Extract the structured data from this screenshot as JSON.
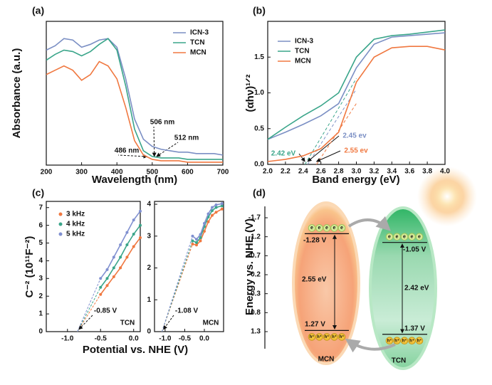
{
  "chart_data": [
    {
      "type": "line",
      "panel_label": "(a)",
      "xlabel": "Wavelength (nm)",
      "ylabel": "Absorbance (a.u.)",
      "xlim": [
        200,
        700
      ],
      "xticks": [
        200,
        300,
        400,
        500,
        600,
        700
      ],
      "ylim": [
        0,
        1
      ],
      "legend": "upper right",
      "x": [
        200,
        225,
        250,
        275,
        300,
        325,
        350,
        375,
        400,
        425,
        450,
        475,
        500,
        525,
        550,
        575,
        600,
        625,
        650,
        675,
        700
      ],
      "series": [
        {
          "name": "ICN-3",
          "color": "#7b8fc4",
          "values": [
            0.8,
            0.83,
            0.88,
            0.87,
            0.82,
            0.84,
            0.87,
            0.88,
            0.82,
            0.6,
            0.32,
            0.18,
            0.13,
            0.11,
            0.1,
            0.09,
            0.09,
            0.08,
            0.08,
            0.08,
            0.07
          ]
        },
        {
          "name": "TCN",
          "color": "#3aa58a",
          "values": [
            0.73,
            0.77,
            0.8,
            0.79,
            0.76,
            0.79,
            0.84,
            0.88,
            0.8,
            0.55,
            0.25,
            0.1,
            0.06,
            0.05,
            0.05,
            0.05,
            0.04,
            0.04,
            0.04,
            0.04,
            0.04
          ]
        },
        {
          "name": "MCN",
          "color": "#f07840",
          "values": [
            0.63,
            0.66,
            0.69,
            0.66,
            0.59,
            0.63,
            0.72,
            0.69,
            0.6,
            0.4,
            0.17,
            0.07,
            0.04,
            0.03,
            0.03,
            0.03,
            0.02,
            0.02,
            0.02,
            0.02,
            0.02
          ]
        }
      ],
      "annotations": [
        {
          "text": "506 nm",
          "value": 506
        },
        {
          "text": "512 nm",
          "value": 512
        },
        {
          "text": "486 nm",
          "value": 486
        }
      ]
    },
    {
      "type": "line",
      "panel_label": "(b)",
      "xlabel": "Band energy (eV)",
      "ylabel": "(αhν)¹ᐟ²",
      "xlim": [
        2.0,
        4.0
      ],
      "xticks": [
        {
          "value": 2,
          "label": "2.0"
        },
        2.2,
        2.4,
        2.6,
        2.8,
        {
          "value": 3,
          "label": "3.0"
        },
        3.2,
        3.4,
        3.6,
        3.8,
        {
          "value": 4,
          "label": "4.0"
        }
      ],
      "ylim": [
        0,
        2.0
      ],
      "yticks": [
        {
          "value": 0,
          "label": "0.0"
        },
        0.5,
        {
          "value": 1,
          "label": "1.0"
        },
        1.5
      ],
      "legend": "upper left",
      "x": [
        2.0,
        2.2,
        2.4,
        2.6,
        2.8,
        3.0,
        3.2,
        3.4,
        3.6,
        3.8,
        4.0
      ],
      "series": [
        {
          "name": "ICN-3",
          "color": "#7b8fc4",
          "values": [
            0.35,
            0.45,
            0.56,
            0.68,
            0.85,
            1.35,
            1.68,
            1.78,
            1.8,
            1.82,
            1.84
          ]
        },
        {
          "name": "TCN",
          "color": "#3aa58a",
          "values": [
            0.35,
            0.52,
            0.68,
            0.82,
            1.0,
            1.5,
            1.75,
            1.8,
            1.82,
            1.85,
            1.88
          ]
        },
        {
          "name": "MCN",
          "color": "#f07840",
          "values": [
            0.04,
            0.07,
            0.12,
            0.22,
            0.45,
            1.15,
            1.5,
            1.63,
            1.65,
            1.65,
            1.6
          ]
        }
      ],
      "annotations": [
        {
          "text": "2.45 ev",
          "value": 2.45,
          "color": "#7b8fc4"
        },
        {
          "text": "2.42 eV",
          "value": 2.42,
          "color": "#3aa58a"
        },
        {
          "text": "2.55 ev",
          "value": 2.55,
          "color": "#f07840"
        }
      ]
    },
    {
      "type": "line",
      "panel_label": "(c)",
      "name": "TCN",
      "xlabel": "Potential vs. NHE (V)",
      "ylabel": "C⁻² (10¹¹F⁻²)",
      "markers": true,
      "xlim": [
        -1.32,
        0.1
      ],
      "xticks": [
        {
          "value": -1,
          "label": "-1.0"
        },
        -0.5,
        {
          "value": 0,
          "label": "0.0"
        }
      ],
      "ylim": [
        0,
        7.35
      ],
      "yticks": [
        0,
        1,
        2,
        3,
        4,
        5,
        6,
        7
      ],
      "legend": "upper left",
      "x": [
        -0.5,
        -0.4,
        -0.3,
        -0.2,
        -0.1,
        0.0,
        0.1
      ],
      "series": [
        {
          "name": "3 kHz",
          "color": "#f07840",
          "values": [
            2.1,
            2.6,
            3.1,
            3.6,
            4.2,
            4.8,
            5.3
          ]
        },
        {
          "name": "4 kHz",
          "color": "#3aa58a",
          "values": [
            2.5,
            3.0,
            3.6,
            4.2,
            4.9,
            5.5,
            6.0
          ]
        },
        {
          "name": "5 kHz",
          "color": "#8090d0",
          "values": [
            3.0,
            3.5,
            4.2,
            4.9,
            5.6,
            6.3,
            6.8
          ]
        }
      ],
      "annotations": [
        {
          "text": "-0.85 V",
          "value": -0.85
        }
      ]
    },
    {
      "type": "line",
      "name": "MCN",
      "markers": true,
      "xlim": [
        -1.27,
        0.49
      ],
      "xticks": [
        {
          "value": -1,
          "label": "-1.0"
        },
        -0.5,
        {
          "value": 0,
          "label": "0.0"
        }
      ],
      "ylim": [
        0,
        4.09
      ],
      "yticks": [
        0,
        1,
        2,
        3,
        4
      ],
      "x": [
        -0.3,
        -0.2,
        -0.1,
        0.0,
        0.1,
        0.2,
        0.3,
        0.45
      ],
      "series": [
        {
          "color": "#f07840",
          "values": [
            2.75,
            2.72,
            2.85,
            3.15,
            3.45,
            3.65,
            3.75,
            3.85
          ]
        },
        {
          "color": "#3aa58a",
          "values": [
            2.85,
            2.8,
            2.95,
            3.3,
            3.6,
            3.8,
            3.9,
            3.95
          ]
        },
        {
          "color": "#8090d0",
          "values": [
            3.0,
            2.9,
            3.05,
            3.4,
            3.7,
            3.9,
            3.98,
            4.02
          ]
        }
      ],
      "annotations": [
        {
          "text": "-1.08 V",
          "value": -1.08
        }
      ]
    },
    {
      "type": "band",
      "panel_label": "(d)",
      "ylabel": "Energy vs. NHE (V)",
      "ylim": [
        -2.0,
        1.75
      ],
      "yticks": [
        -1.7,
        -1.2,
        -0.7,
        -0.2,
        0.3,
        0.8,
        1.3
      ],
      "electron_label": "e",
      "hole_label": "h⁺",
      "materials": [
        {
          "name": "MCN",
          "cb": {
            "value": -1.28,
            "label": "-1.28 V"
          },
          "vb": {
            "value": 1.27,
            "label": "1.27 V"
          },
          "gap": {
            "value": 2.55,
            "label": "2.55 eV"
          }
        },
        {
          "name": "TCN",
          "cb": {
            "value": -1.05,
            "label": "-1.05 V"
          },
          "vb": {
            "value": 1.37,
            "label": "1.37 V"
          },
          "gap": {
            "value": 2.42,
            "label": "2.42 eV"
          }
        }
      ]
    }
  ]
}
